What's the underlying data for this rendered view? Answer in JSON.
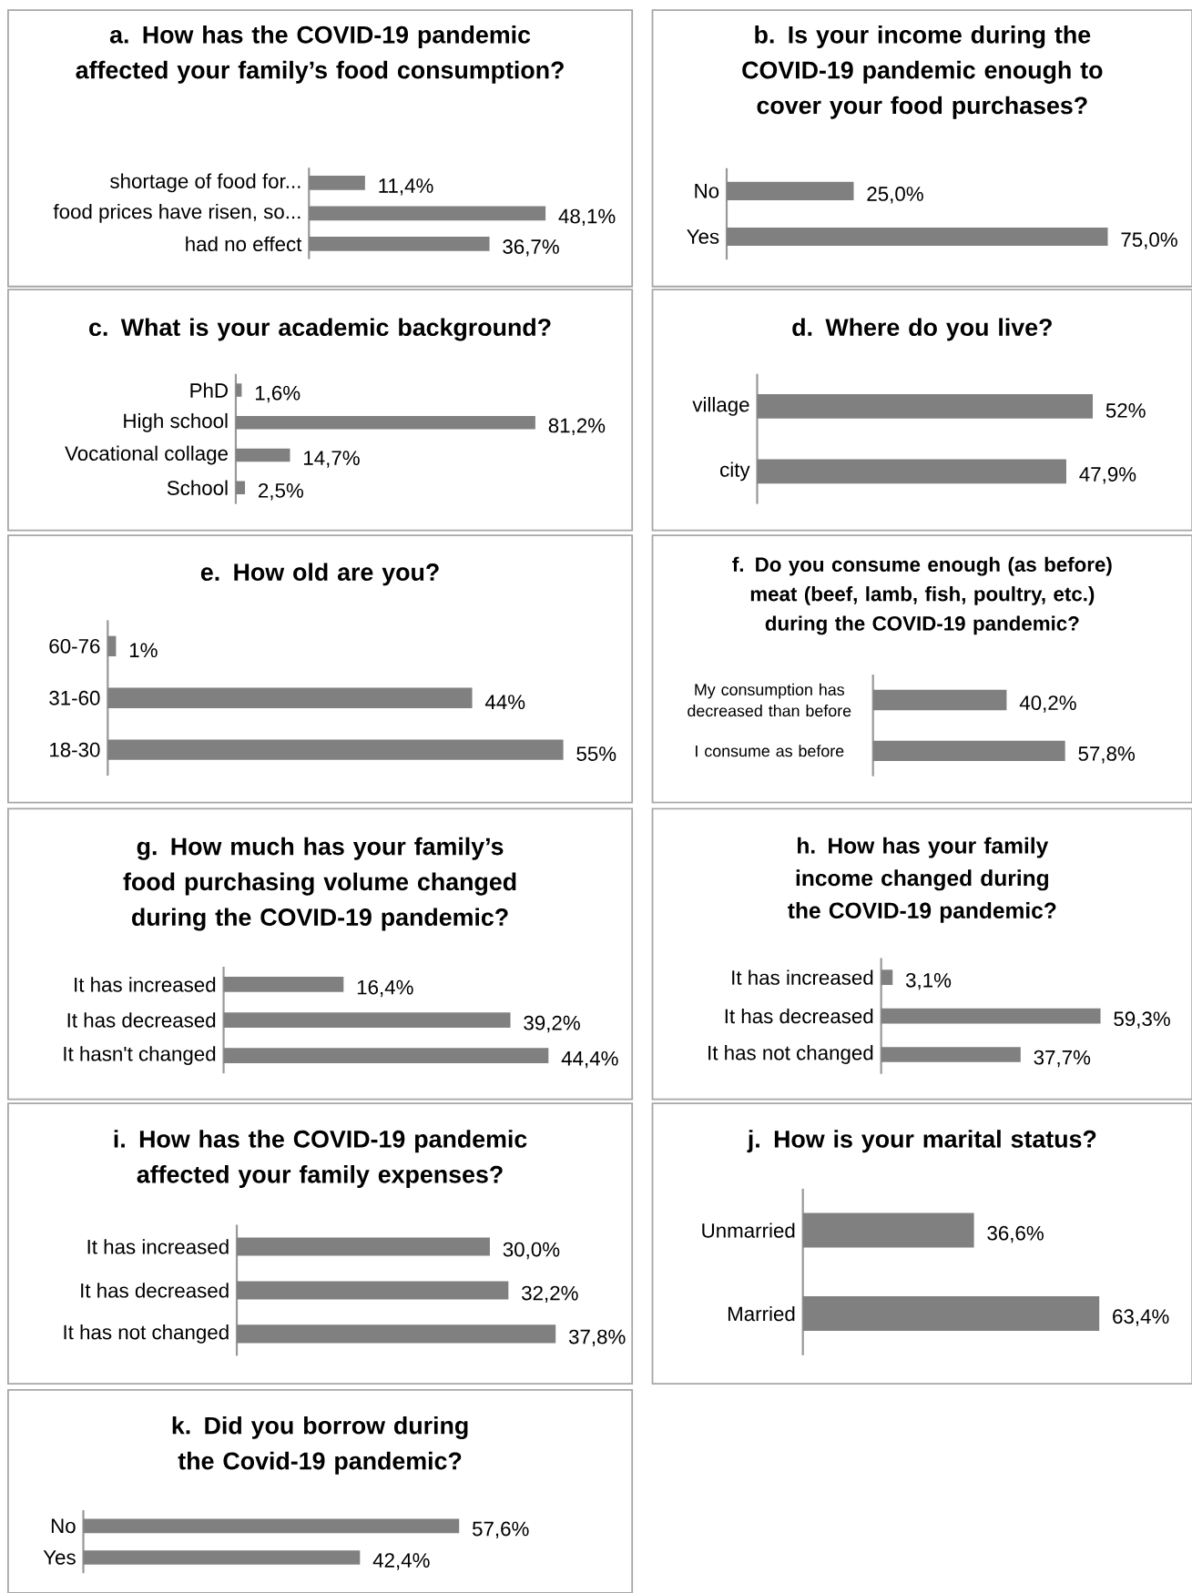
{
  "chart_data": [
    {
      "type": "bar",
      "orientation": "horizontal",
      "title": "a. How has the COVID-19 pandemic affected your family’s food consumption?",
      "categories": [
        "shortage of food for...",
        "food prices have risen, so...",
        "had no effect"
      ],
      "values": [
        11.4,
        48.1,
        36.7
      ],
      "value_labels": [
        "11,4%",
        "48,1%",
        "36,7%"
      ],
      "color": "#808080"
    },
    {
      "type": "bar",
      "orientation": "horizontal",
      "title": "b. Is your income during the COVID-19 pandemic enough to cover your food purchases?",
      "categories": [
        "No",
        "Yes"
      ],
      "values": [
        25.0,
        75.0
      ],
      "value_labels": [
        "25,0%",
        "75,0%"
      ],
      "color": "#808080"
    },
    {
      "type": "bar",
      "orientation": "horizontal",
      "title": "c. What is your academic background?",
      "categories": [
        "PhD",
        "High school",
        "Vocational collage",
        "School"
      ],
      "values": [
        1.6,
        81.2,
        14.7,
        2.5
      ],
      "value_labels": [
        "1,6%",
        "81,2%",
        "14,7%",
        "2,5%"
      ],
      "color": "#808080"
    },
    {
      "type": "bar",
      "orientation": "horizontal",
      "title": "d. Where do you live?",
      "categories": [
        "village",
        "city"
      ],
      "values": [
        52,
        47.9
      ],
      "value_labels": [
        "52%",
        "47,9%"
      ],
      "color": "#808080"
    },
    {
      "type": "bar",
      "orientation": "horizontal",
      "title": "e. How old are you?",
      "categories": [
        "60-76",
        "31-60",
        "18-30"
      ],
      "values": [
        1,
        44,
        55
      ],
      "value_labels": [
        "1%",
        "44%",
        "55%"
      ],
      "color": "#808080"
    },
    {
      "type": "bar",
      "orientation": "horizontal",
      "title": "f. Do you consume enough (as before) meat (beef, lamb, fish, poultry, etc.) during the COVID-19 pandemic?",
      "categories": [
        "My consumption has decreased than before",
        "I consume as before"
      ],
      "values": [
        40.2,
        57.8
      ],
      "value_labels": [
        "40,2%",
        "57,8%"
      ],
      "color": "#808080"
    },
    {
      "type": "bar",
      "orientation": "horizontal",
      "title": "g. How much has your family’s food purchasing volume changed during the COVID-19 pandemic?",
      "categories": [
        "It has increased",
        "It has decreased",
        "It hasn't changed"
      ],
      "values": [
        16.4,
        39.2,
        44.4
      ],
      "value_labels": [
        "16,4%",
        "39,2%",
        "44,4%"
      ],
      "color": "#808080"
    },
    {
      "type": "bar",
      "orientation": "horizontal",
      "title": "h. How has your family income changed during the COVID-19 pandemic?",
      "categories": [
        "It has increased",
        "It has decreased",
        "It has not changed"
      ],
      "values": [
        3.1,
        59.3,
        37.7
      ],
      "value_labels": [
        "3,1%",
        "59,3%",
        "37,7%"
      ],
      "color": "#808080"
    },
    {
      "type": "bar",
      "orientation": "horizontal",
      "title": "i. How has the COVID-19 pandemic affected your family expenses?",
      "categories": [
        "It has increased",
        "It has decreased",
        "It has not changed"
      ],
      "values": [
        30.0,
        32.2,
        37.8
      ],
      "value_labels": [
        "30,0%",
        "32,2%",
        "37,8%"
      ],
      "color": "#808080"
    },
    {
      "type": "bar",
      "orientation": "horizontal",
      "title": "j. How is your marital status?",
      "categories": [
        "Unmarried",
        "Married"
      ],
      "values": [
        36.6,
        63.4
      ],
      "value_labels": [
        "36,6%",
        "63,4%"
      ],
      "color": "#808080"
    },
    {
      "type": "bar",
      "orientation": "horizontal",
      "title": "k. Did you borrow during the Covid-19 pandemic?",
      "categories": [
        "No",
        "Yes"
      ],
      "values": [
        57.6,
        42.4
      ],
      "value_labels": [
        "57,6%",
        "42,4%"
      ],
      "color": "#808080"
    }
  ]
}
